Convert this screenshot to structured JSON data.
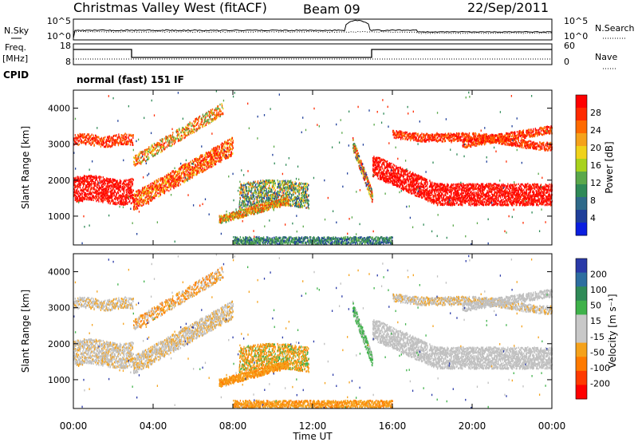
{
  "header": {
    "station": "Christmas Valley West (fitACF)",
    "beam": "Beam 09",
    "date": "22/Sep/2011"
  },
  "strips": {
    "nsky_label": "N.Sky",
    "nsearch_label": "N.Search",
    "freq_label_1": "Freq.",
    "freq_label_2": "[MHz]",
    "nave_label": "Nave",
    "cpid_label": "CPID",
    "noise_ticks": [
      "10^5",
      "10^0"
    ],
    "freq_ticks": [
      "18",
      "8"
    ],
    "nave_ticks": [
      "60",
      "0"
    ],
    "cpid_text": "normal (fast) 151 IF"
  },
  "chart_data": [
    {
      "type": "heatmap",
      "title": "",
      "parameter": "Power",
      "colorbar_label": "Power [dB]",
      "colorbar_ticks": [
        "28",
        "24",
        "20",
        "16",
        "12",
        "8",
        "4"
      ],
      "colorbar_colors": [
        "#ff0000",
        "#ff2a00",
        "#ff6a00",
        "#f5a21b",
        "#f0d21a",
        "#a8d21c",
        "#5aa84a",
        "#2f8a57",
        "#2f6a8a",
        "#1f3f9a",
        "#0a1ee0"
      ],
      "ylabel": "Slant Range [km]",
      "yticks": [
        "1000",
        "2000",
        "3000",
        "4000"
      ],
      "ylim": [
        200,
        4500
      ],
      "xlim": [
        0,
        24
      ]
    },
    {
      "type": "heatmap",
      "title": "",
      "parameter": "Velocity",
      "colorbar_label": "Velocity [m s⁻¹]",
      "colorbar_ticks": [
        "200",
        "100",
        "50",
        "15",
        "-15",
        "-50",
        "-100",
        "-200"
      ],
      "colorbar_colors": [
        "#2a3aa8",
        "#2d6ea0",
        "#2f8a57",
        "#3fb24a",
        "#c8c8c8",
        "#c8c8c8",
        "#f5a21b",
        "#ff7a00",
        "#ff3a00",
        "#ff0000"
      ],
      "ylabel": "Slant Range [km]",
      "yticks": [
        "1000",
        "2000",
        "3000",
        "4000"
      ],
      "ylim": [
        200,
        4500
      ],
      "xlim": [
        0,
        24
      ],
      "xlabel": "Time UT",
      "xticks": [
        "00:00",
        "04:00",
        "08:00",
        "12:00",
        "16:00",
        "20:00",
        "00:00"
      ]
    }
  ]
}
